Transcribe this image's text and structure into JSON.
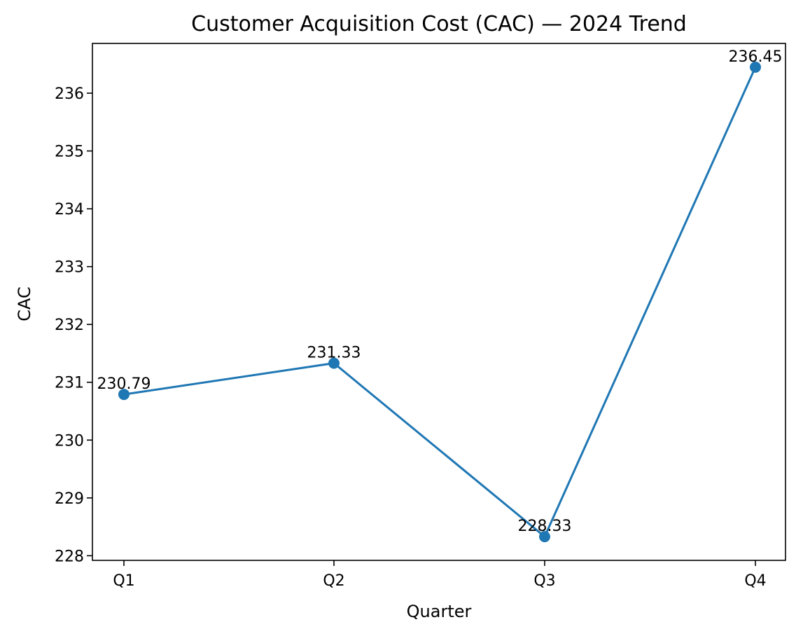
{
  "chart_data": {
    "type": "line",
    "title": "Customer Acquisition Cost (CAC) — 2024 Trend",
    "xlabel": "Quarter",
    "ylabel": "CAC",
    "categories": [
      "Q1",
      "Q2",
      "Q3",
      "Q4"
    ],
    "series": [
      {
        "values": [
          230.79,
          231.33,
          228.33,
          236.45
        ],
        "color": "#1f77b4"
      }
    ],
    "data_labels": [
      "230.79",
      "231.33",
      "228.33",
      "236.45"
    ],
    "ylim": [
      227.92,
      236.86
    ],
    "yticks": [
      228,
      229,
      230,
      231,
      232,
      233,
      234,
      235,
      236
    ],
    "grid": false,
    "legend": "none"
  }
}
